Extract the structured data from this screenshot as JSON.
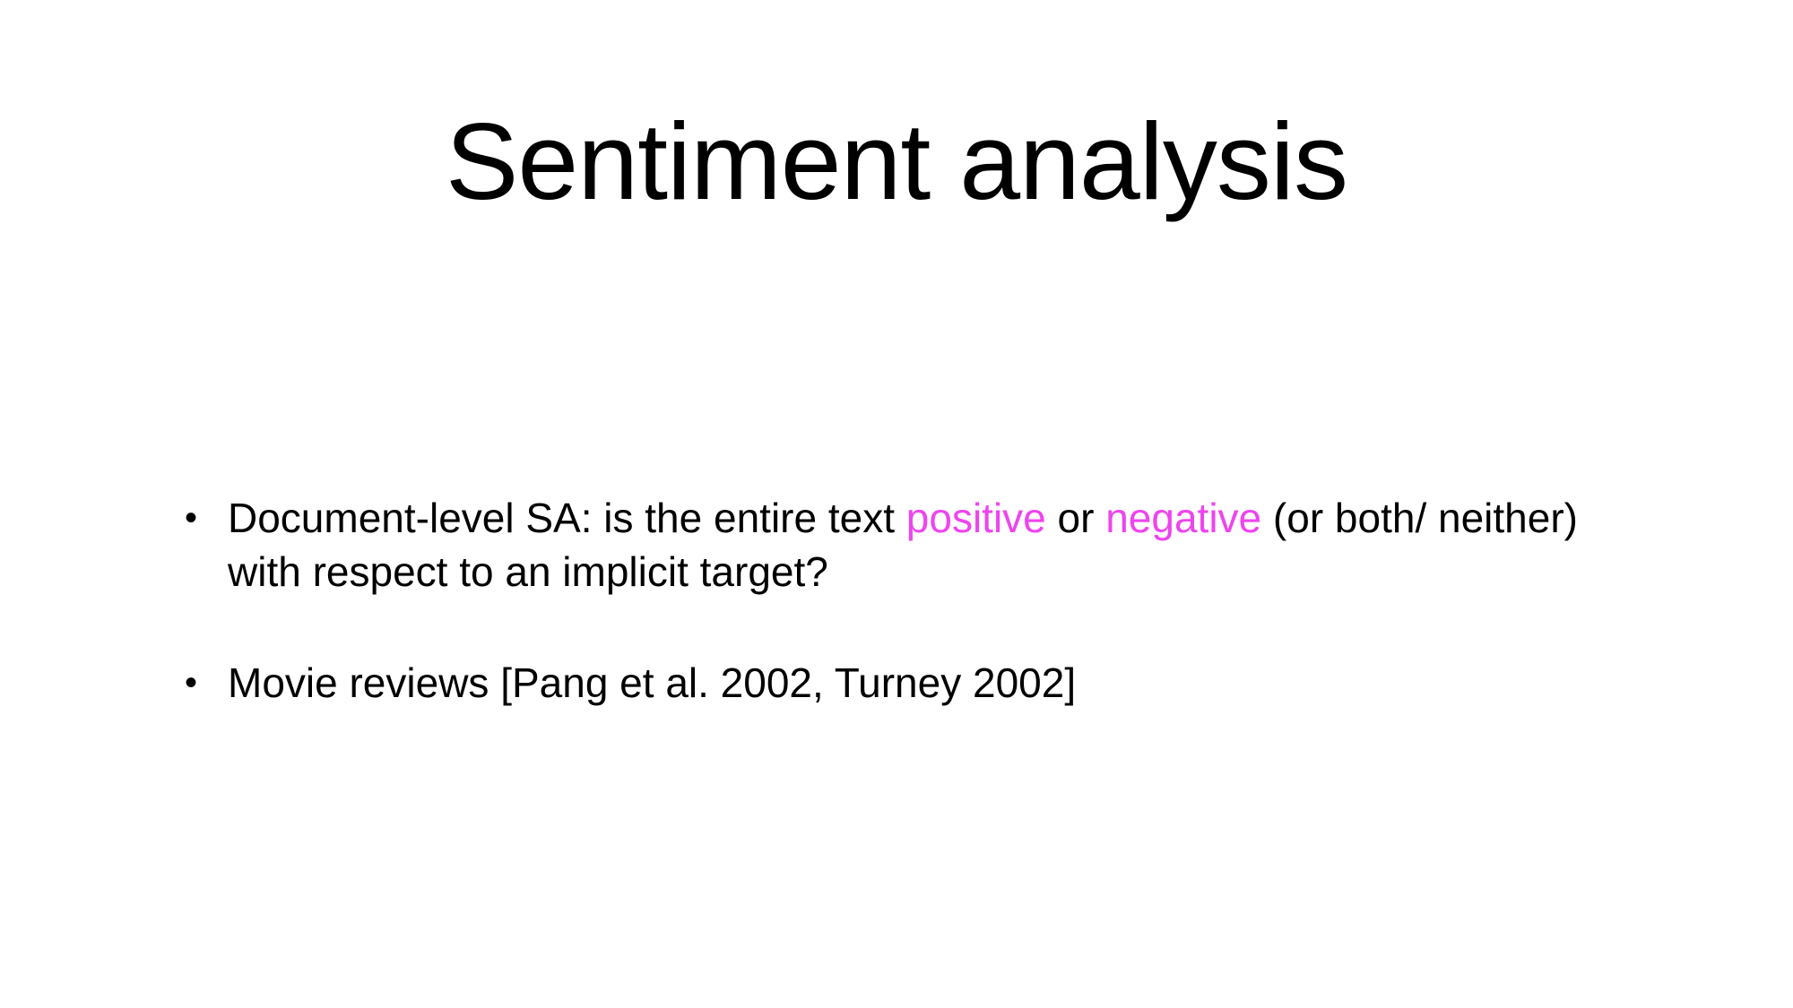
{
  "slide": {
    "title": "Sentiment analysis",
    "bullets": [
      {
        "before_positive": "Document-level SA: is the entire text ",
        "positive": "positive",
        "between": " or ",
        "negative": "negative",
        "after_negative": " (or both/ neither) with respect to an implicit target?"
      },
      {
        "text": "Movie reviews [Pang et al. 2002, Turney 2002]"
      }
    ],
    "bullet_glyph": "•",
    "colors": {
      "highlight": "#ee44ee",
      "text": "#000000",
      "background": "#ffffff"
    }
  }
}
